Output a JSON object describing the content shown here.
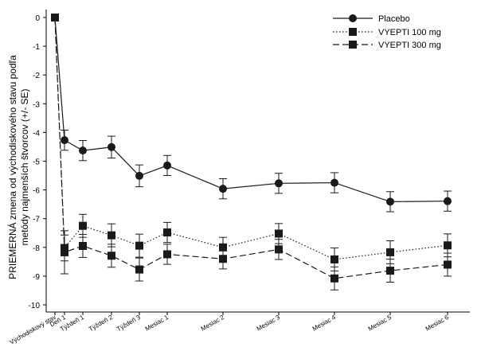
{
  "chart_data": {
    "type": "line",
    "categories": [
      "Východiskový stav",
      "Deň 1",
      "Týždeň 1",
      "Týždeň 2",
      "Týždeň 3",
      "Mesiac 1",
      "Mesiac 2",
      "Mesiac 3",
      "Mesiac 4",
      "Mesiac 5",
      "Mesiac 6"
    ],
    "x": [
      0,
      1,
      7,
      14,
      21,
      28,
      56,
      84,
      112,
      140,
      168
    ],
    "ylabel_lines": [
      "PRIEMERNÁ zmena od východiskového stavu podľa",
      "metódy najmenších štvorcov (+/- SE)"
    ],
    "xlabel": "",
    "ylim": [
      -10,
      0
    ],
    "yticks": [
      0,
      -1,
      -2,
      -3,
      -4,
      -5,
      -6,
      -7,
      -8,
      -9,
      -10
    ],
    "legend_position": "top-right",
    "series": [
      {
        "name": "Placebo",
        "line_style": "solid",
        "marker": "circle",
        "values": [
          0,
          -4.27,
          -4.63,
          -4.51,
          -5.51,
          -5.15,
          -5.96,
          -5.77,
          -5.75,
          -6.41,
          -6.39
        ],
        "se": [
          0,
          0.35,
          0.35,
          0.38,
          0.38,
          0.35,
          0.35,
          0.35,
          0.35,
          0.35,
          0.35
        ]
      },
      {
        "name": "VYEPTI 100 mg",
        "line_style": "dotted",
        "marker": "square",
        "values": [
          0,
          -8.02,
          -7.25,
          -7.58,
          -7.94,
          -7.48,
          -8.0,
          -7.52,
          -8.42,
          -8.17,
          -7.93
        ],
        "se": [
          0,
          0.45,
          0.4,
          0.4,
          0.4,
          0.35,
          0.35,
          0.35,
          0.4,
          0.4,
          0.4
        ]
      },
      {
        "name": "VYEPTI 300 mg",
        "line_style": "dashed",
        "marker": "square",
        "values": [
          0,
          -8.17,
          -7.95,
          -8.29,
          -8.77,
          -8.24,
          -8.4,
          -8.07,
          -9.08,
          -8.81,
          -8.6
        ],
        "se": [
          0,
          0.75,
          0.4,
          0.4,
          0.4,
          0.35,
          0.35,
          0.35,
          0.4,
          0.4,
          0.4
        ]
      }
    ]
  },
  "legend": {
    "placebo": "Placebo",
    "v100": "VYEPTI 100 mg",
    "v300": "VYEPTI 300 mg"
  },
  "colors": {
    "line": "#1a1a1a",
    "axis": "#000000"
  }
}
